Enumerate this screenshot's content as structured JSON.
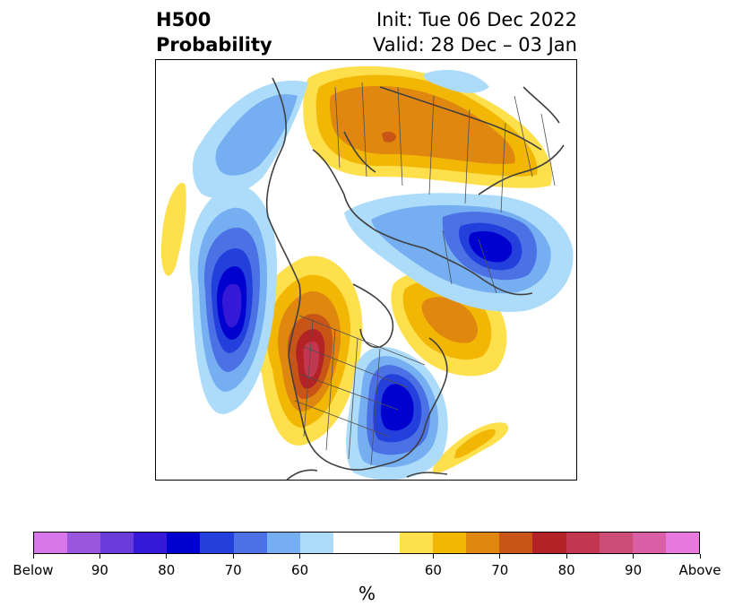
{
  "title": {
    "left_line1": "H500",
    "left_line2": "Probability",
    "right_line1": "Init: Tue 06 Dec 2022",
    "right_line2": "Valid: 28 Dec – 03 Jan"
  },
  "colorbar": {
    "label": "%",
    "ticks": [
      "Below",
      "90",
      "80",
      "70",
      "60",
      "60",
      "70",
      "80",
      "90",
      "Above"
    ],
    "below_colors": [
      "#d676e8",
      "#9a56dd",
      "#6a3ddb",
      "#3519d6",
      "#0000cf",
      "#2440dc",
      "#4b71e4",
      "#76aef2",
      "#acdcfa"
    ],
    "above_colors": [
      "#fedf4c",
      "#f2b705",
      "#df870e",
      "#c85417",
      "#b32225",
      "#c23650",
      "#cc4d78",
      "#db5fa6",
      "#e879df"
    ]
  }
}
